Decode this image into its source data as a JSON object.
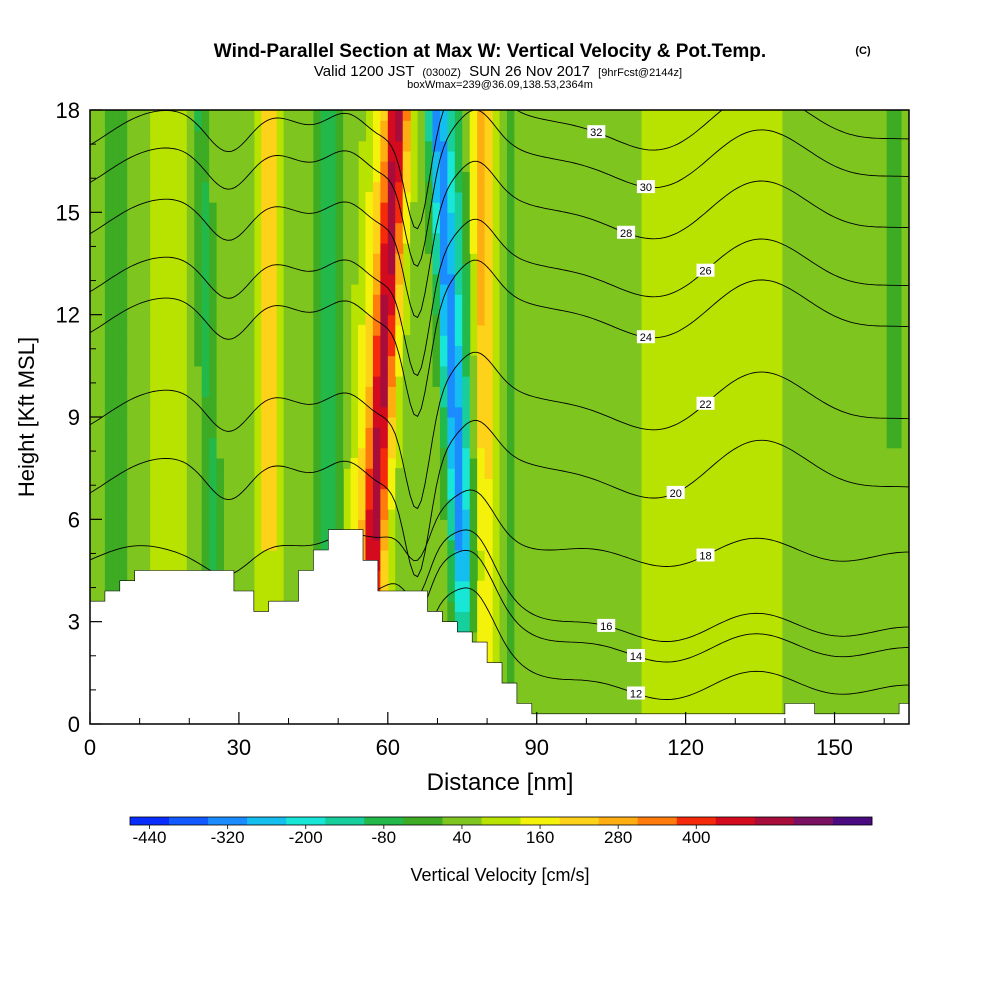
{
  "chart_data": {
    "type": "heatmap",
    "title": "Wind-Parallel Section at Max W: Vertical Velocity & Pot.Temp.",
    "title_mark": "(C)",
    "subtitle_parts": [
      "Valid 1200 JST",
      "(0300Z)",
      "SUN 26 Nov 2017",
      "[9hrFcst@2144z]"
    ],
    "subtitle2": "boxWmax=239@36.09,138.53,2364m",
    "xlabel": "Distance [nm]",
    "ylabel": "Height [Kft MSL]",
    "xlim": [
      0,
      165
    ],
    "ylim": [
      0,
      18
    ],
    "xticks": [
      0,
      30,
      60,
      90,
      120,
      150
    ],
    "yticks": [
      0,
      3,
      6,
      9,
      12,
      15,
      18
    ],
    "colorbar": {
      "label": "Vertical Velocity [cm/s]",
      "tick_labels": [
        "-440",
        "-320",
        "-200",
        "-80",
        "40",
        "160",
        "280",
        "400"
      ],
      "levels": [
        -440,
        -380,
        -320,
        -260,
        -200,
        -140,
        -80,
        -20,
        40,
        100,
        160,
        220,
        280,
        340,
        400,
        460
      ],
      "colors": [
        "#0a2dff",
        "#1259ff",
        "#1a8cff",
        "#14bff0",
        "#18e6d6",
        "#17cf9c",
        "#22b84a",
        "#3dab23",
        "#7ec61f",
        "#b8e200",
        "#f4f20a",
        "#ffd21a",
        "#ffae12",
        "#ff7c0c",
        "#f52a0b",
        "#d40a1e",
        "#a70c3a",
        "#7a1062",
        "#4a0a80"
      ]
    },
    "terrain": [
      [
        0,
        3.6
      ],
      [
        3,
        3.6
      ],
      [
        3,
        3.9
      ],
      [
        6,
        3.9
      ],
      [
        6,
        4.2
      ],
      [
        9,
        4.2
      ],
      [
        9,
        4.5
      ],
      [
        29,
        4.5
      ],
      [
        29,
        3.9
      ],
      [
        33,
        3.9
      ],
      [
        33,
        3.3
      ],
      [
        36,
        3.3
      ],
      [
        36,
        3.6
      ],
      [
        42,
        3.6
      ],
      [
        42,
        4.5
      ],
      [
        45,
        4.5
      ],
      [
        45,
        5.1
      ],
      [
        48,
        5.1
      ],
      [
        48,
        5.7
      ],
      [
        55,
        5.7
      ],
      [
        55,
        4.8
      ],
      [
        58,
        4.8
      ],
      [
        58,
        3.9
      ],
      [
        68,
        3.9
      ],
      [
        68,
        3.3
      ],
      [
        71,
        3.3
      ],
      [
        71,
        3
      ],
      [
        74,
        3
      ],
      [
        74,
        2.7
      ],
      [
        77,
        2.7
      ],
      [
        77,
        2.4
      ],
      [
        80,
        2.4
      ],
      [
        80,
        1.8
      ],
      [
        83,
        1.8
      ],
      [
        83,
        1.2
      ],
      [
        86,
        1.2
      ],
      [
        86,
        0.6
      ],
      [
        89,
        0.6
      ],
      [
        89,
        0.3
      ],
      [
        140,
        0.3
      ],
      [
        140,
        0.6
      ],
      [
        146,
        0.6
      ],
      [
        146,
        0.3
      ],
      [
        163,
        0.3
      ],
      [
        163,
        0.6
      ],
      [
        165,
        0.6
      ]
    ],
    "updraft_core": {
      "x_top": 62,
      "x_bottom": 57,
      "peak": 460
    },
    "downdraft_core": {
      "x_top": 70,
      "x_bottom": 75,
      "peak": -380
    },
    "theta_contours": [
      {
        "value": 12,
        "base_height": 1.1,
        "label_at_x": 110
      },
      {
        "value": 14,
        "base_height": 2.2,
        "label_at_x": 110
      },
      {
        "value": 16,
        "base_height": 2.8,
        "label_at_x": 104
      },
      {
        "value": 18,
        "base_height": 5.0,
        "label_at_x": 124
      },
      {
        "value": 20,
        "base_height": 7.4,
        "label_at_x": 118
      },
      {
        "value": 22,
        "base_height": 9.4,
        "label_at_x": 124
      },
      {
        "value": 24,
        "base_height": 12.1,
        "label_at_x": 112
      },
      {
        "value": 26,
        "base_height": 13.3,
        "label_at_x": 124
      },
      {
        "value": 28,
        "base_height": 15.0,
        "label_at_x": 108
      },
      {
        "value": 30,
        "base_height": 16.5,
        "label_at_x": 112
      },
      {
        "value": 32,
        "base_height": 17.6,
        "label_at_x": 102
      }
    ]
  }
}
